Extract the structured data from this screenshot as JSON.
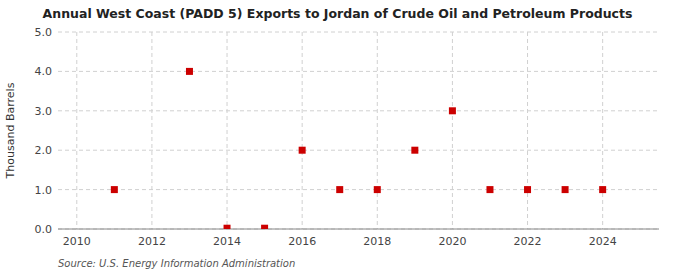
{
  "chart_data": {
    "type": "scatter",
    "title": "Annual West Coast (PADD 5) Exports to Jordan of Crude Oil and Petroleum Products",
    "y_label": "Thousand Barrels",
    "annotations": [
      "Source: U.S. Energy Information Administration"
    ],
    "x": [
      2011,
      2013,
      2014,
      2015,
      2016,
      2017,
      2018,
      2019,
      2020,
      2021,
      2022,
      2023,
      2024
    ],
    "values": [
      1,
      4,
      0.02,
      0.02,
      2,
      1,
      1,
      2,
      3,
      1,
      1,
      1,
      1
    ],
    "color": "#cc0000",
    "marker": "square",
    "xlim": [
      2009.5,
      2025.5
    ],
    "ylim": [
      0.0,
      5.0
    ],
    "xticks": [
      2010,
      2012,
      2014,
      2016,
      2018,
      2020,
      2022,
      2024
    ],
    "yticks": [
      {
        "value": 0.0,
        "label": "0.0"
      },
      {
        "value": 1.0,
        "label": "1.0"
      },
      {
        "value": 2.0,
        "label": "2.0"
      },
      {
        "value": 3.0,
        "label": "3.0"
      },
      {
        "value": 4.0,
        "label": "4.0"
      },
      {
        "value": 5.0,
        "label": "5.0"
      }
    ],
    "grid": true
  }
}
